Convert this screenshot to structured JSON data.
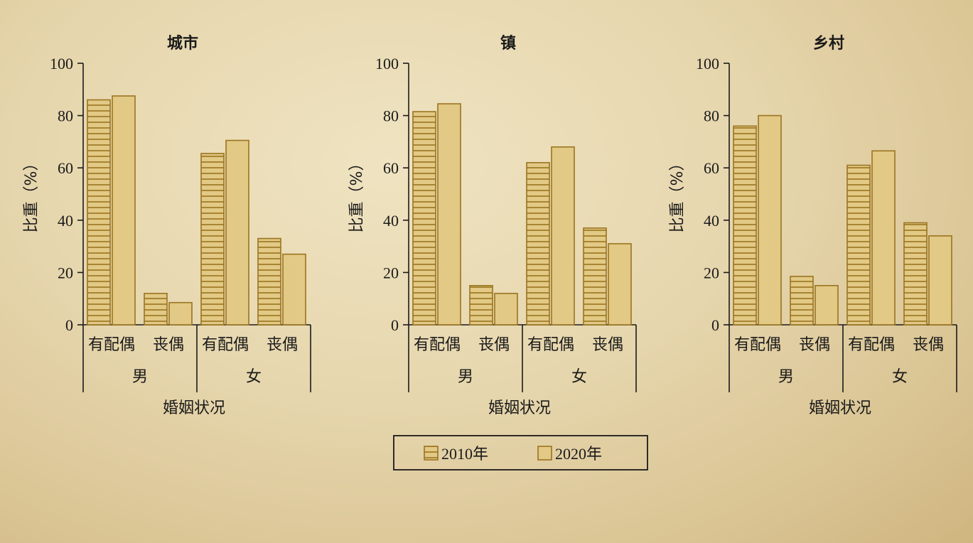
{
  "chart_data": [
    {
      "type": "bar",
      "title": "城市",
      "ylabel": "比重（%）",
      "xlabel": "婚姻状况",
      "ylim": [
        0,
        100
      ],
      "yticks": [
        0,
        20,
        40,
        60,
        80,
        100
      ],
      "groups": [
        "男",
        "女"
      ],
      "categories": [
        "有配偶",
        "丧偶",
        "有配偶",
        "丧偶"
      ],
      "series": [
        {
          "name": "2010年",
          "values": [
            86,
            12,
            65.5,
            33
          ]
        },
        {
          "name": "2020年",
          "values": [
            87.5,
            8.5,
            70.5,
            27
          ]
        }
      ]
    },
    {
      "type": "bar",
      "title": "镇",
      "ylabel": "比重（%）",
      "xlabel": "婚姻状况",
      "ylim": [
        0,
        100
      ],
      "yticks": [
        0,
        20,
        40,
        60,
        80,
        100
      ],
      "groups": [
        "男",
        "女"
      ],
      "categories": [
        "有配偶",
        "丧偶",
        "有配偶",
        "丧偶"
      ],
      "series": [
        {
          "name": "2010年",
          "values": [
            81.5,
            15,
            62,
            37
          ]
        },
        {
          "name": "2020年",
          "values": [
            84.5,
            12,
            68,
            31
          ]
        }
      ]
    },
    {
      "type": "bar",
      "title": "乡村",
      "ylabel": "比重（%）",
      "xlabel": "婚姻状况",
      "ylim": [
        0,
        100
      ],
      "yticks": [
        0,
        20,
        40,
        60,
        80,
        100
      ],
      "groups": [
        "男",
        "女"
      ],
      "categories": [
        "有配偶",
        "丧偶",
        "有配偶",
        "丧偶"
      ],
      "series": [
        {
          "name": "2010年",
          "values": [
            76,
            18.5,
            61,
            39
          ]
        },
        {
          "name": "2020年",
          "values": [
            80,
            15,
            66.5,
            34
          ]
        }
      ]
    }
  ],
  "legend": {
    "items": [
      {
        "label": "2010年",
        "pattern": "hatched"
      },
      {
        "label": "2020年",
        "pattern": "solid"
      }
    ]
  },
  "colors": {
    "bar_fill": "#e2c985",
    "bar_stroke": "#9a7420",
    "hatch": "#9a7420",
    "axis": "#1a1a1a"
  }
}
